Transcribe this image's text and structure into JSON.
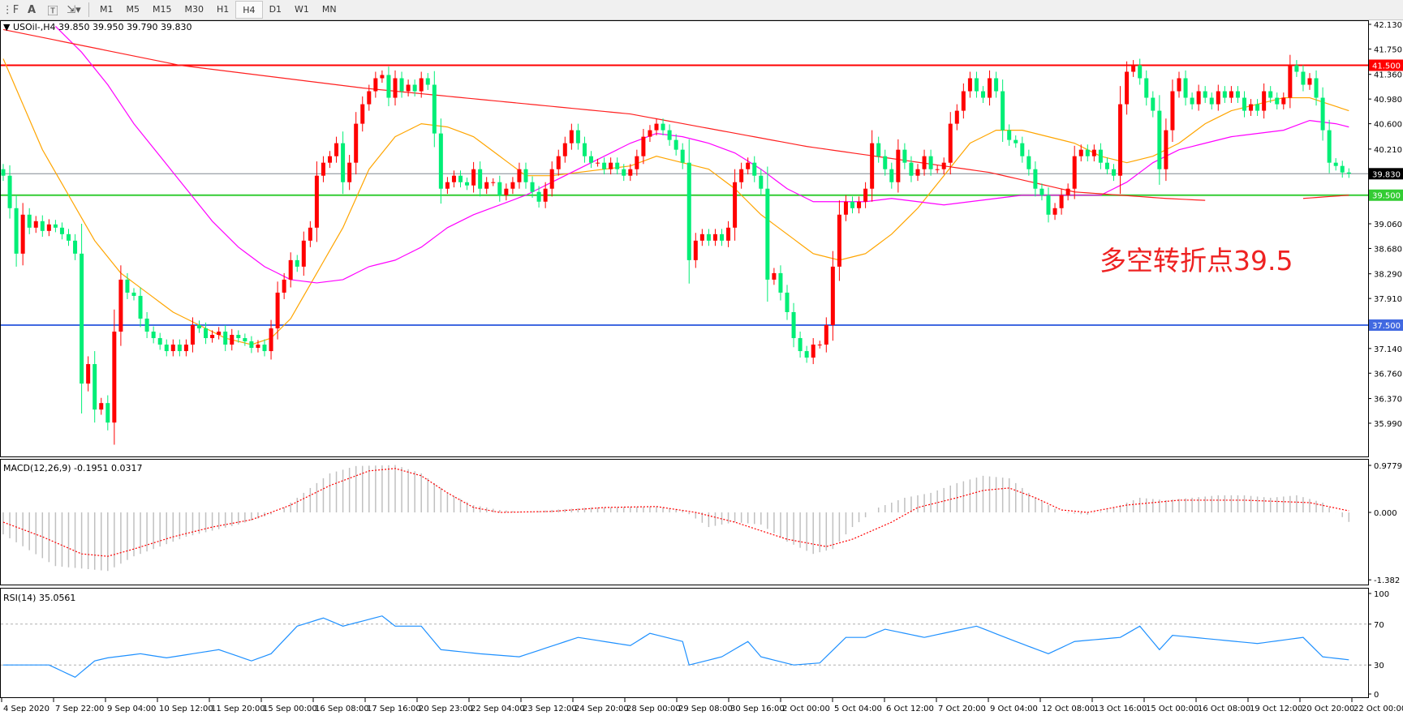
{
  "toolbar": {
    "icons": [
      "grid-f-icon",
      "text-a-icon",
      "text-label-icon",
      "arrows-icon"
    ],
    "timeframes": [
      "M1",
      "M5",
      "M15",
      "M30",
      "H1",
      "H4",
      "D1",
      "W1",
      "MN"
    ],
    "active_timeframe": "H4"
  },
  "main_panel": {
    "header": "USOil-,H4  39.850 39.950 39.790 39.830",
    "annotation": "多空转折点39.5",
    "axis_labels": [
      "42.130",
      "41.750",
      "41.360",
      "40.980",
      "40.600",
      "40.210",
      "39.060",
      "38.680",
      "38.290",
      "37.910",
      "37.140",
      "36.760",
      "36.370",
      "35.990"
    ],
    "price_tags": [
      {
        "label": "41.500",
        "value": 41.5,
        "color": "#ff0000"
      },
      {
        "label": "39.830",
        "value": 39.83,
        "color": "#000000"
      },
      {
        "label": "39.500",
        "value": 39.5,
        "color": "#33cc33"
      },
      {
        "label": "37.500",
        "value": 37.5,
        "color": "#4169e1"
      }
    ]
  },
  "macd_panel": {
    "header": "MACD(12,26,9) -0.1951 0.0317",
    "axis_labels": [
      "0.9779",
      "0.000",
      "-1.382"
    ]
  },
  "rsi_panel": {
    "header": "RSI(14) 35.0561",
    "axis_labels": [
      "100",
      "70",
      "30",
      "0"
    ]
  },
  "time_axis": [
    "4 Sep 2020",
    "7 Sep 22:00",
    "9 Sep 04:00",
    "10 Sep 12:00",
    "11 Sep 20:00",
    "15 Sep 00:00",
    "16 Sep 08:00",
    "17 Sep 16:00",
    "20 Sep 23:00",
    "22 Sep 04:00",
    "23 Sep 12:00",
    "24 Sep 20:00",
    "28 Sep 00:00",
    "29 Sep 08:00",
    "30 Sep 16:00",
    "2 Oct 00:00",
    "5 Oct 04:00",
    "6 Oct 12:00",
    "7 Oct 20:00",
    "9 Oct 04:00",
    "12 Oct 08:00",
    "13 Oct 16:00",
    "15 Oct 00:00",
    "16 Oct 08:00",
    "19 Oct 12:00",
    "20 Oct 20:00",
    "22 Oct 00:00"
  ],
  "chart_data": {
    "type": "candlestick",
    "symbol": "USOil-",
    "timeframe": "H4",
    "ylim": [
      35.99,
      42.13
    ],
    "up_color": "#ff0000",
    "down_color": "#00ee76",
    "closes": [
      39.8,
      39.3,
      38.6,
      39.2,
      39.0,
      39.1,
      38.95,
      39.05,
      39.0,
      38.9,
      38.8,
      38.6,
      36.6,
      36.9,
      36.2,
      36.3,
      36.0,
      37.4,
      38.2,
      38.0,
      37.95,
      37.6,
      37.4,
      37.3,
      37.2,
      37.1,
      37.2,
      37.1,
      37.2,
      37.5,
      37.45,
      37.3,
      37.35,
      37.4,
      37.2,
      37.35,
      37.3,
      37.25,
      37.15,
      37.2,
      37.1,
      37.45,
      38.0,
      38.2,
      38.5,
      38.4,
      38.8,
      39.0,
      39.8,
      40.0,
      40.1,
      40.3,
      39.7,
      40.0,
      40.6,
      40.9,
      41.1,
      41.3,
      41.35,
      41.0,
      41.3,
      41.1,
      41.2,
      41.1,
      41.3,
      41.2,
      40.45,
      39.6,
      39.7,
      39.8,
      39.7,
      39.65,
      39.9,
      39.6,
      39.7,
      39.7,
      39.5,
      39.6,
      39.7,
      39.9,
      39.7,
      39.55,
      39.4,
      39.6,
      39.9,
      40.1,
      40.3,
      40.5,
      40.3,
      40.1,
      40.0,
      40.0,
      39.9,
      40.0,
      39.9,
      39.8,
      39.9,
      40.1,
      40.4,
      40.5,
      40.6,
      40.5,
      40.35,
      40.2,
      40.0,
      38.5,
      38.8,
      38.9,
      38.8,
      38.9,
      38.8,
      39.0,
      39.7,
      39.9,
      40.0,
      39.8,
      39.6,
      38.2,
      38.3,
      38.0,
      37.7,
      37.3,
      37.1,
      37.0,
      37.2,
      37.2,
      37.5,
      38.4,
      39.2,
      39.4,
      39.3,
      39.4,
      39.6,
      40.3,
      40.1,
      39.9,
      39.7,
      40.2,
      40.0,
      39.8,
      39.9,
      40.1,
      39.9,
      39.9,
      40.0,
      40.6,
      40.8,
      41.1,
      41.3,
      41.1,
      41.0,
      41.3,
      41.1,
      40.5,
      40.35,
      40.3,
      40.1,
      39.9,
      39.6,
      39.5,
      39.2,
      39.3,
      39.5,
      39.6,
      40.1,
      40.2,
      40.1,
      40.2,
      40.0,
      39.9,
      39.8,
      40.9,
      41.4,
      41.5,
      41.3,
      41.0,
      40.8,
      39.9,
      40.5,
      41.1,
      41.3,
      41.0,
      40.9,
      41.1,
      41.0,
      40.9,
      41.1,
      41.0,
      41.1,
      41.0,
      40.8,
      40.9,
      40.8,
      41.1,
      41.0,
      40.9,
      41.0,
      41.5,
      41.4,
      41.2,
      41.3,
      41.0,
      40.5,
      40.0,
      39.95,
      39.85,
      39.83
    ],
    "horizontal_lines": [
      {
        "value": 41.5,
        "color": "#ff0000"
      },
      {
        "value": 39.83,
        "color": "#808890"
      },
      {
        "value": 39.5,
        "color": "#33cc33"
      },
      {
        "value": 37.5,
        "color": "#4169e1"
      }
    ],
    "moving_averages": [
      {
        "color": "#ffa500",
        "points": [
          [
            0,
            41.6
          ],
          [
            3,
            40.9
          ],
          [
            6,
            40.2
          ],
          [
            10,
            39.5
          ],
          [
            14,
            38.8
          ],
          [
            18,
            38.3
          ],
          [
            22,
            38.0
          ],
          [
            26,
            37.7
          ],
          [
            30,
            37.5
          ],
          [
            34,
            37.3
          ],
          [
            38,
            37.2
          ],
          [
            41,
            37.3
          ],
          [
            44,
            37.6
          ],
          [
            48,
            38.3
          ],
          [
            52,
            39.0
          ],
          [
            56,
            39.9
          ],
          [
            60,
            40.4
          ],
          [
            64,
            40.6
          ],
          [
            68,
            40.55
          ],
          [
            72,
            40.4
          ],
          [
            76,
            40.1
          ],
          [
            80,
            39.8
          ],
          [
            84,
            39.8
          ],
          [
            88,
            39.85
          ],
          [
            92,
            39.9
          ],
          [
            96,
            39.95
          ],
          [
            100,
            40.1
          ],
          [
            104,
            40.0
          ],
          [
            108,
            39.9
          ],
          [
            112,
            39.6
          ],
          [
            116,
            39.2
          ],
          [
            120,
            38.9
          ],
          [
            124,
            38.6
          ],
          [
            128,
            38.5
          ],
          [
            132,
            38.6
          ],
          [
            136,
            38.9
          ],
          [
            140,
            39.3
          ],
          [
            144,
            39.8
          ],
          [
            148,
            40.3
          ],
          [
            152,
            40.5
          ],
          [
            156,
            40.5
          ],
          [
            160,
            40.4
          ],
          [
            164,
            40.3
          ],
          [
            168,
            40.1
          ],
          [
            172,
            40.0
          ],
          [
            176,
            40.1
          ],
          [
            180,
            40.3
          ],
          [
            184,
            40.6
          ],
          [
            188,
            40.8
          ],
          [
            192,
            40.9
          ],
          [
            196,
            41.0
          ],
          [
            200,
            41.0
          ],
          [
            206,
            40.8
          ]
        ]
      },
      {
        "color": "#ff00ff",
        "points": [
          [
            8,
            42.1
          ],
          [
            12,
            41.7
          ],
          [
            16,
            41.2
          ],
          [
            20,
            40.6
          ],
          [
            24,
            40.1
          ],
          [
            28,
            39.6
          ],
          [
            32,
            39.1
          ],
          [
            36,
            38.7
          ],
          [
            40,
            38.4
          ],
          [
            44,
            38.2
          ],
          [
            48,
            38.15
          ],
          [
            52,
            38.2
          ],
          [
            56,
            38.4
          ],
          [
            60,
            38.5
          ],
          [
            64,
            38.7
          ],
          [
            68,
            39.0
          ],
          [
            72,
            39.2
          ],
          [
            76,
            39.35
          ],
          [
            80,
            39.5
          ],
          [
            84,
            39.7
          ],
          [
            88,
            39.9
          ],
          [
            92,
            40.1
          ],
          [
            96,
            40.3
          ],
          [
            100,
            40.45
          ],
          [
            104,
            40.4
          ],
          [
            108,
            40.3
          ],
          [
            112,
            40.15
          ],
          [
            116,
            39.9
          ],
          [
            120,
            39.6
          ],
          [
            124,
            39.4
          ],
          [
            128,
            39.4
          ],
          [
            132,
            39.4
          ],
          [
            136,
            39.45
          ],
          [
            140,
            39.4
          ],
          [
            144,
            39.35
          ],
          [
            148,
            39.4
          ],
          [
            152,
            39.45
          ],
          [
            156,
            39.5
          ],
          [
            160,
            39.5
          ],
          [
            164,
            39.5
          ],
          [
            168,
            39.5
          ],
          [
            172,
            39.7
          ],
          [
            176,
            40.0
          ],
          [
            180,
            40.2
          ],
          [
            184,
            40.3
          ],
          [
            188,
            40.4
          ],
          [
            192,
            40.45
          ],
          [
            196,
            40.5
          ],
          [
            200,
            40.65
          ],
          [
            204,
            40.6
          ],
          [
            206,
            40.55
          ]
        ]
      },
      {
        "color": "#ff2020",
        "points": [
          [
            0,
            42.05
          ],
          [
            27,
            41.5
          ],
          [
            55,
            41.15
          ],
          [
            96,
            40.75
          ],
          [
            123,
            40.25
          ],
          [
            137,
            40.05
          ],
          [
            151,
            39.85
          ],
          [
            164,
            39.55
          ],
          [
            178,
            39.45
          ],
          [
            184,
            39.42
          ]
        ]
      },
      {
        "color": "#ff2020",
        "points": [
          [
            199,
            39.45
          ],
          [
            206,
            39.5
          ]
        ]
      }
    ],
    "macd": {
      "ylim": [
        -1.382,
        0.9779
      ],
      "histogram_color": "#c0c0c0",
      "signal_color": "#ff0000",
      "main": [
        [
          0,
          -0.45
        ],
        [
          8,
          -1.1
        ],
        [
          16,
          -1.2
        ],
        [
          20,
          -0.9
        ],
        [
          28,
          -0.5
        ],
        [
          36,
          -0.25
        ],
        [
          42,
          0.0
        ],
        [
          46,
          0.4
        ],
        [
          50,
          0.8
        ],
        [
          54,
          0.95
        ],
        [
          60,
          0.97
        ],
        [
          64,
          0.8
        ],
        [
          68,
          0.4
        ],
        [
          72,
          0.15
        ],
        [
          76,
          0.05
        ],
        [
          80,
          0.0
        ],
        [
          84,
          0.05
        ],
        [
          90,
          0.1
        ],
        [
          100,
          0.12
        ],
        [
          104,
          0.05
        ],
        [
          108,
          -0.3
        ],
        [
          112,
          -0.2
        ],
        [
          116,
          -0.25
        ],
        [
          120,
          -0.6
        ],
        [
          124,
          -0.85
        ],
        [
          127,
          -0.75
        ],
        [
          130,
          -0.3
        ],
        [
          134,
          0.1
        ],
        [
          138,
          0.3
        ],
        [
          142,
          0.4
        ],
        [
          146,
          0.6
        ],
        [
          150,
          0.75
        ],
        [
          154,
          0.7
        ],
        [
          158,
          0.3
        ],
        [
          162,
          0.0
        ],
        [
          166,
          -0.05
        ],
        [
          170,
          0.1
        ],
        [
          174,
          0.3
        ],
        [
          178,
          0.25
        ],
        [
          182,
          0.3
        ],
        [
          186,
          0.35
        ],
        [
          190,
          0.35
        ],
        [
          194,
          0.3
        ],
        [
          198,
          0.35
        ],
        [
          202,
          0.2
        ],
        [
          206,
          -0.1951
        ]
      ],
      "signal": [
        [
          0,
          -0.2
        ],
        [
          6,
          -0.5
        ],
        [
          12,
          -0.85
        ],
        [
          16,
          -0.9
        ],
        [
          20,
          -0.75
        ],
        [
          26,
          -0.5
        ],
        [
          32,
          -0.3
        ],
        [
          38,
          -0.15
        ],
        [
          44,
          0.15
        ],
        [
          50,
          0.55
        ],
        [
          56,
          0.85
        ],
        [
          60,
          0.9
        ],
        [
          64,
          0.75
        ],
        [
          68,
          0.4
        ],
        [
          72,
          0.1
        ],
        [
          76,
          0.0
        ],
        [
          84,
          0.02
        ],
        [
          92,
          0.1
        ],
        [
          100,
          0.12
        ],
        [
          106,
          0.0
        ],
        [
          112,
          -0.2
        ],
        [
          120,
          -0.55
        ],
        [
          126,
          -0.7
        ],
        [
          130,
          -0.55
        ],
        [
          136,
          -0.2
        ],
        [
          140,
          0.1
        ],
        [
          146,
          0.3
        ],
        [
          150,
          0.45
        ],
        [
          154,
          0.5
        ],
        [
          158,
          0.3
        ],
        [
          162,
          0.05
        ],
        [
          166,
          0.0
        ],
        [
          172,
          0.15
        ],
        [
          180,
          0.25
        ],
        [
          190,
          0.25
        ],
        [
          200,
          0.2
        ],
        [
          206,
          0.0317
        ]
      ]
    },
    "rsi": {
      "ylim": [
        0,
        100
      ],
      "levels": [
        70,
        30
      ],
      "color": "#1e90ff",
      "points": [
        [
          0,
          30
        ],
        [
          7,
          30
        ],
        [
          11,
          18
        ],
        [
          14,
          34
        ],
        [
          16,
          37
        ],
        [
          21,
          41
        ],
        [
          25,
          37
        ],
        [
          33,
          45
        ],
        [
          38,
          34
        ],
        [
          41,
          41
        ],
        [
          45,
          68
        ],
        [
          49,
          76
        ],
        [
          52,
          68
        ],
        [
          58,
          78
        ],
        [
          60,
          68
        ],
        [
          64,
          68
        ],
        [
          67,
          45
        ],
        [
          73,
          41
        ],
        [
          79,
          38
        ],
        [
          88,
          57
        ],
        [
          96,
          49
        ],
        [
          99,
          61
        ],
        [
          104,
          53
        ],
        [
          105,
          30
        ],
        [
          110,
          38
        ],
        [
          114,
          53
        ],
        [
          116,
          38
        ],
        [
          121,
          30
        ],
        [
          125,
          32
        ],
        [
          129,
          57
        ],
        [
          132,
          57
        ],
        [
          135,
          65
        ],
        [
          141,
          57
        ],
        [
          149,
          68
        ],
        [
          155,
          53
        ],
        [
          160,
          41
        ],
        [
          164,
          53
        ],
        [
          171,
          57
        ],
        [
          174,
          68
        ],
        [
          177,
          45
        ],
        [
          179,
          59
        ],
        [
          192,
          51
        ],
        [
          199,
          57
        ],
        [
          202,
          38
        ],
        [
          206,
          35.06
        ]
      ]
    }
  }
}
